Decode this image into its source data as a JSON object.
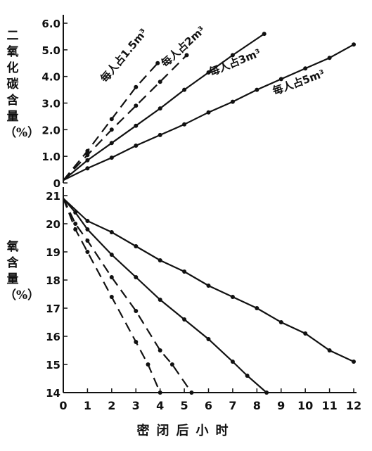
{
  "chart_data": [
    {
      "type": "line",
      "ylabel": "二氧化碳含量（%）",
      "xlabel": "密闭后小时",
      "xlim": [
        0,
        12
      ],
      "ylim": [
        0,
        6.0
      ],
      "x_ticks": [
        0,
        1,
        2,
        3,
        4,
        5,
        6,
        7,
        8,
        9,
        10,
        11,
        12
      ],
      "y_ticks": [
        "0",
        "1.0",
        "2.0",
        "3.0",
        "4.0",
        "5.0",
        "6.0"
      ],
      "series": [
        {
          "name": "每人占1.5m³",
          "style": "dashed",
          "x": [
            0,
            1,
            2,
            3,
            3.9
          ],
          "y": [
            0.1,
            1.2,
            2.4,
            3.6,
            4.5
          ]
        },
        {
          "name": "每人占2m³",
          "style": "dashed",
          "x": [
            0,
            1,
            2,
            3,
            4,
            5.1
          ],
          "y": [
            0.1,
            1.05,
            2.0,
            2.9,
            3.8,
            4.8
          ]
        },
        {
          "name": "每人占3m³",
          "style": "solid",
          "x": [
            0,
            1,
            2,
            3,
            4,
            5,
            6,
            7,
            8.3
          ],
          "y": [
            0.1,
            0.85,
            1.5,
            2.15,
            2.8,
            3.5,
            4.15,
            4.8,
            5.6
          ]
        },
        {
          "name": "每人占5m³",
          "style": "solid",
          "x": [
            0,
            1,
            2,
            3,
            4,
            5,
            6,
            7,
            8,
            9,
            10,
            11,
            12
          ],
          "y": [
            0.1,
            0.55,
            0.95,
            1.4,
            1.8,
            2.2,
            2.65,
            3.05,
            3.5,
            3.9,
            4.3,
            4.7,
            5.2
          ]
        }
      ]
    },
    {
      "type": "line",
      "ylabel": "氧含量（%）",
      "xlabel": "密闭后小时",
      "xlim": [
        0,
        12
      ],
      "ylim": [
        14,
        21
      ],
      "x_ticks": [
        0,
        1,
        2,
        3,
        4,
        5,
        6,
        7,
        8,
        9,
        10,
        11,
        12
      ],
      "y_ticks": [
        "14",
        "15",
        "16",
        "17",
        "18",
        "19",
        "20",
        "21"
      ],
      "series": [
        {
          "style": "dashed",
          "x": [
            0,
            0.5,
            1,
            2,
            3,
            3.5,
            4
          ],
          "y": [
            20.9,
            19.8,
            19.0,
            17.4,
            15.8,
            15.0,
            14.0
          ]
        },
        {
          "style": "dashed",
          "x": [
            0,
            0.5,
            1,
            2,
            3,
            4,
            4.5,
            5.3
          ],
          "y": [
            20.9,
            20.0,
            19.4,
            18.1,
            16.9,
            15.5,
            15.0,
            14.0
          ]
        },
        {
          "style": "solid",
          "x": [
            0,
            0.5,
            1,
            2,
            3,
            4,
            5,
            6,
            7,
            7.6,
            8.4
          ],
          "y": [
            20.9,
            20.4,
            19.8,
            18.9,
            18.1,
            17.3,
            16.6,
            15.9,
            15.1,
            14.6,
            14.0
          ]
        },
        {
          "style": "solid",
          "x": [
            0,
            1,
            2,
            3,
            4,
            5,
            6,
            7,
            8,
            9,
            10,
            11,
            12
          ],
          "y": [
            20.9,
            20.1,
            19.7,
            19.2,
            18.7,
            18.3,
            17.8,
            17.4,
            17.0,
            16.5,
            16.1,
            15.5,
            15.1
          ]
        }
      ]
    }
  ]
}
